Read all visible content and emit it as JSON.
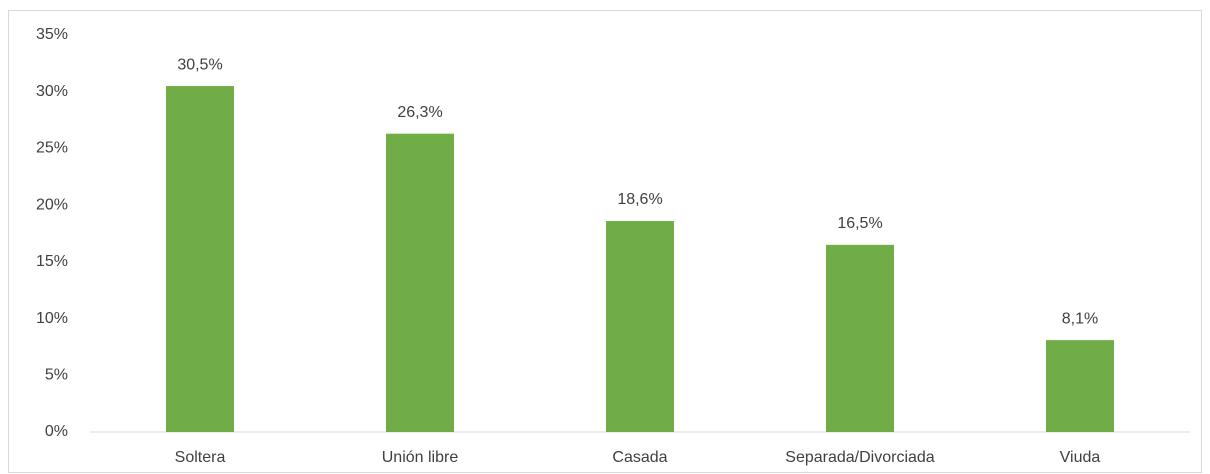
{
  "chart_data": {
    "type": "bar",
    "categories": [
      "Soltera",
      "Unión libre",
      "Casada",
      "Separada/Divorciada",
      "Viuda"
    ],
    "values": [
      30.5,
      26.3,
      18.6,
      16.5,
      8.1
    ],
    "value_labels": [
      "30,5%",
      "26,3%",
      "18,6%",
      "16,5%",
      "8,1%"
    ],
    "color": "#70ad47",
    "ylim": [
      0,
      35
    ],
    "yticks": [
      {
        "value": 0,
        "label": "0%"
      },
      {
        "value": 5,
        "label": "5%"
      },
      {
        "value": 10,
        "label": "10%"
      },
      {
        "value": 15,
        "label": "15%"
      },
      {
        "value": 20,
        "label": "20%"
      },
      {
        "value": 25,
        "label": "25%"
      },
      {
        "value": 30,
        "label": "30%"
      },
      {
        "value": 35,
        "label": "35%"
      }
    ],
    "grid": false
  }
}
